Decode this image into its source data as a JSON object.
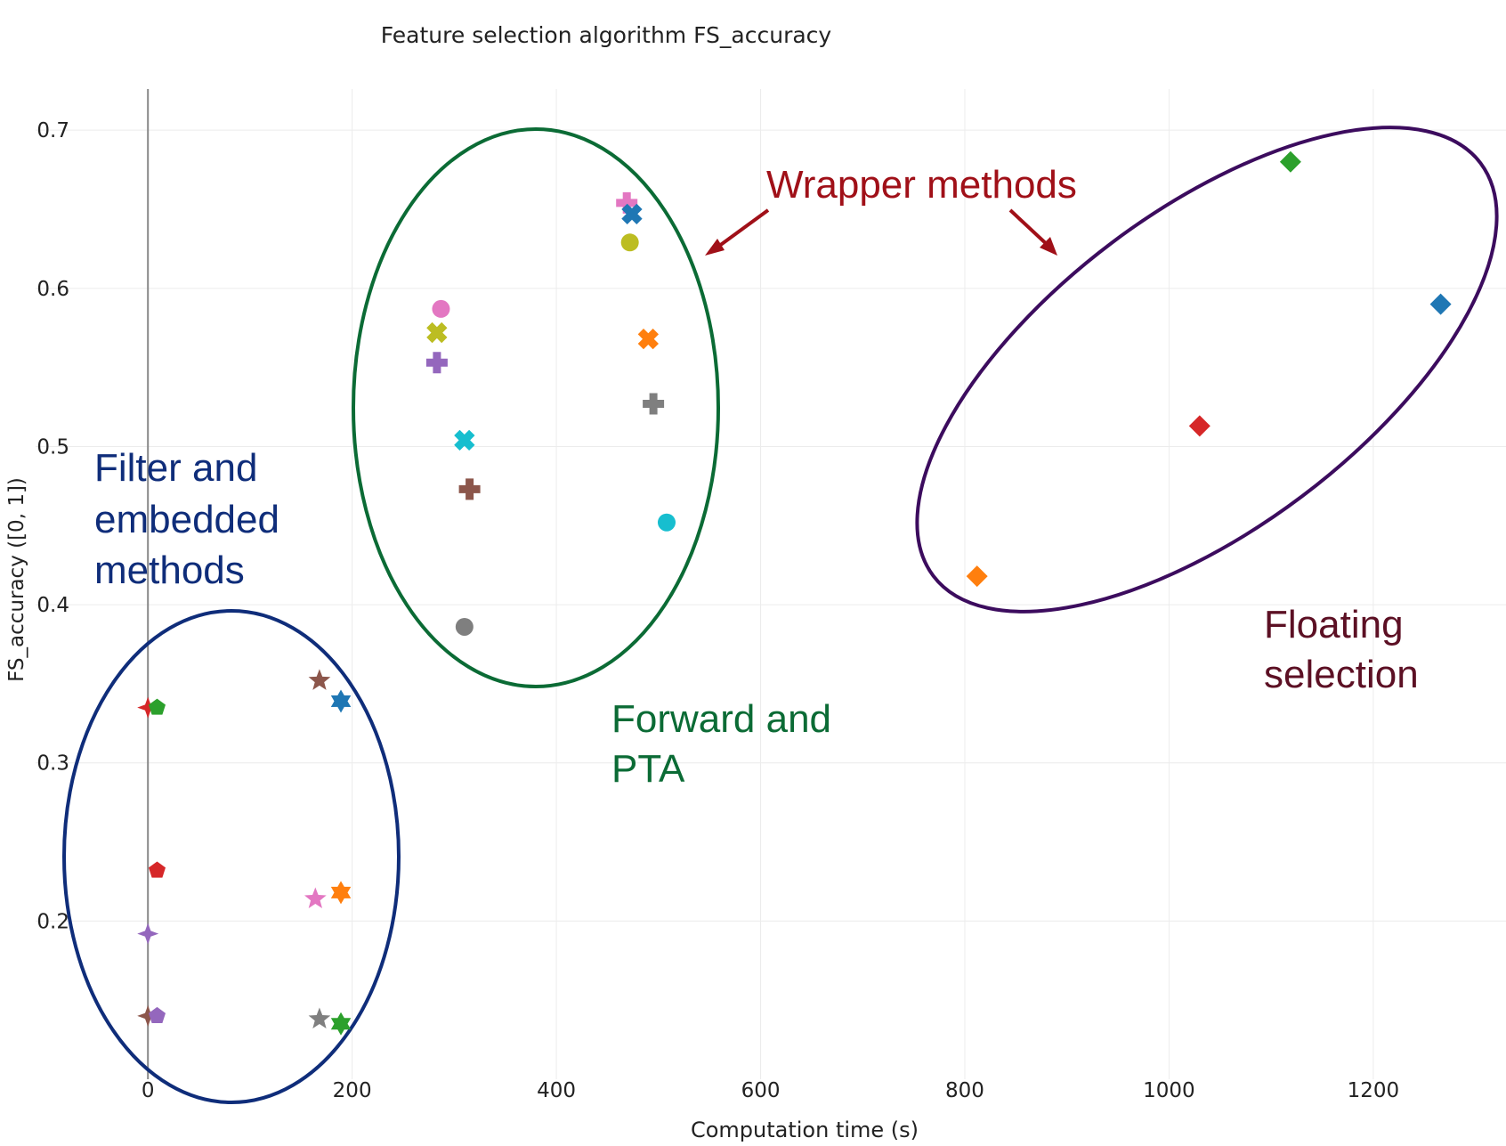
{
  "chart_data": {
    "type": "scatter",
    "title": "Feature selection algorithm FS_accuracy",
    "xlabel": "Computation time (s)",
    "ylabel": "FS_accuracy ([0, 1])",
    "xlim": [
      -110,
      1330
    ],
    "ylim": [
      0.1,
      0.726
    ],
    "x_ticks": [
      0,
      200,
      400,
      600,
      800,
      1000,
      1200
    ],
    "y_ticks": [
      0.2,
      0.3,
      0.4,
      0.5,
      0.6,
      0.7
    ],
    "x_tick_labels": [
      "0",
      "200",
      "400",
      "600",
      "800",
      "1000",
      "1200"
    ],
    "y_tick_labels": [
      "0.2",
      "0.3",
      "0.4",
      "0.5",
      "0.6",
      "0.7"
    ],
    "grid": true,
    "zero_line": true,
    "points": [
      {
        "x": 0,
        "y": 0.335,
        "symbol": "star-diamond",
        "color": "#d62728"
      },
      {
        "x": 9,
        "y": 0.335,
        "symbol": "pentagon",
        "color": "#2ca02c"
      },
      {
        "x": 168,
        "y": 0.352,
        "symbol": "star",
        "color": "#8c564b"
      },
      {
        "x": 189,
        "y": 0.339,
        "symbol": "hexagram",
        "color": "#1f77b4"
      },
      {
        "x": 9,
        "y": 0.232,
        "symbol": "pentagon",
        "color": "#d62728"
      },
      {
        "x": 164,
        "y": 0.214,
        "symbol": "star",
        "color": "#e377c2"
      },
      {
        "x": 189,
        "y": 0.218,
        "symbol": "hexagram",
        "color": "#ff7f0e"
      },
      {
        "x": 0,
        "y": 0.192,
        "symbol": "star-diamond",
        "color": "#9467bd"
      },
      {
        "x": 0,
        "y": 0.14,
        "symbol": "star-diamond",
        "color": "#8c564b"
      },
      {
        "x": 9,
        "y": 0.14,
        "symbol": "pentagon",
        "color": "#9467bd"
      },
      {
        "x": 168,
        "y": 0.138,
        "symbol": "star",
        "color": "#7f7f7f"
      },
      {
        "x": 189,
        "y": 0.135,
        "symbol": "hexagram",
        "color": "#2ca02c"
      },
      {
        "x": 287,
        "y": 0.587,
        "symbol": "circle",
        "color": "#e377c2"
      },
      {
        "x": 283,
        "y": 0.572,
        "symbol": "x",
        "color": "#bcbd22"
      },
      {
        "x": 283,
        "y": 0.553,
        "symbol": "cross",
        "color": "#9467bd"
      },
      {
        "x": 310,
        "y": 0.504,
        "symbol": "x",
        "color": "#17becf"
      },
      {
        "x": 315,
        "y": 0.473,
        "symbol": "cross",
        "color": "#8c564b"
      },
      {
        "x": 310,
        "y": 0.386,
        "symbol": "circle",
        "color": "#7f7f7f"
      },
      {
        "x": 469,
        "y": 0.654,
        "symbol": "cross",
        "color": "#e377c2"
      },
      {
        "x": 474,
        "y": 0.647,
        "symbol": "x",
        "color": "#1f77b4"
      },
      {
        "x": 472,
        "y": 0.629,
        "symbol": "circle",
        "color": "#bcbd22"
      },
      {
        "x": 490,
        "y": 0.568,
        "symbol": "x",
        "color": "#ff7f0e"
      },
      {
        "x": 495,
        "y": 0.527,
        "symbol": "cross",
        "color": "#7f7f7f"
      },
      {
        "x": 508,
        "y": 0.452,
        "symbol": "circle",
        "color": "#17becf"
      },
      {
        "x": 812,
        "y": 0.418,
        "symbol": "diamond",
        "color": "#ff7f0e"
      },
      {
        "x": 1030,
        "y": 0.513,
        "symbol": "diamond",
        "color": "#d62728"
      },
      {
        "x": 1119,
        "y": 0.68,
        "symbol": "diamond",
        "color": "#2ca02c"
      },
      {
        "x": 1266,
        "y": 0.59,
        "symbol": "diamond",
        "color": "#1f77b4"
      }
    ],
    "annotations": {
      "filter": {
        "lines": [
          "Filter and",
          "embedded",
          "methods"
        ],
        "color": "#0f2d7a"
      },
      "forward": {
        "lines": [
          "Forward and",
          "PTA"
        ],
        "color": "#0b6b35"
      },
      "wrapper": {
        "text": "Wrapper methods",
        "color": "#a01018"
      },
      "floating": {
        "lines": [
          "Floating",
          "selection"
        ],
        "color": "#5c1024"
      }
    },
    "ellipse_colors": {
      "filter": "#0f2d7a",
      "forward": "#0b6b35",
      "floating": "#3c0c5e"
    }
  }
}
